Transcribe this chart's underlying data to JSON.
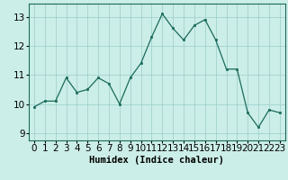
{
  "x": [
    0,
    1,
    2,
    3,
    4,
    5,
    6,
    7,
    8,
    9,
    10,
    11,
    12,
    13,
    14,
    15,
    16,
    17,
    18,
    19,
    20,
    21,
    22,
    23
  ],
  "y": [
    9.9,
    10.1,
    10.1,
    10.9,
    10.4,
    10.5,
    10.9,
    10.7,
    10.0,
    10.9,
    11.4,
    12.3,
    13.1,
    12.6,
    12.2,
    12.7,
    12.9,
    12.2,
    11.2,
    11.2,
    9.7,
    9.2,
    9.8,
    9.7
  ],
  "line_color": "#1a6b5a",
  "marker_color": "#1a6b5a",
  "bg_color": "#cceee8",
  "grid_color": "#99cccc",
  "xlabel": "Humidex (Indice chaleur)",
  "ylim": [
    8.75,
    13.45
  ],
  "xlim": [
    -0.5,
    23.5
  ],
  "yticks": [
    9,
    10,
    11,
    12,
    13
  ],
  "xticks": [
    0,
    1,
    2,
    3,
    4,
    5,
    6,
    7,
    8,
    9,
    10,
    11,
    12,
    13,
    14,
    15,
    16,
    17,
    18,
    19,
    20,
    21,
    22,
    23
  ],
  "xlabel_fontsize": 7.5,
  "tick_fontsize": 7.5,
  "figwidth": 3.2,
  "figheight": 2.0,
  "dpi": 100
}
